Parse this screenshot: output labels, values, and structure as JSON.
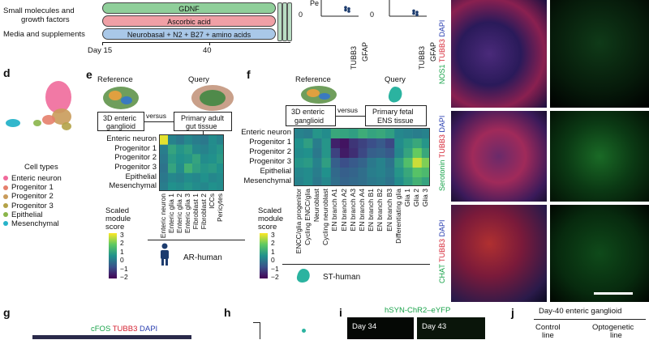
{
  "panel_a": {
    "row_labels": [
      "Small molecules and",
      "growth factors",
      "Media and supplements"
    ],
    "bars": [
      {
        "label": "GDNF",
        "color": "#8fcf9a"
      },
      {
        "label": "Ascorbic acid",
        "color": "#f0a0a6"
      },
      {
        "label": "Neurobasal + N2 + B27 + amino acids",
        "color": "#a9c8e8"
      }
    ],
    "axis": {
      "start": "Day 15",
      "end": "40"
    }
  },
  "panel_b": {
    "ylabel": "Pe",
    "tick_zero": "0",
    "plots": [
      {
        "categories": [
          "TUBB3",
          "GFAP"
        ],
        "values": [
          null,
          14
        ]
      },
      {
        "categories": [
          "TUBB3",
          "GFAP"
        ],
        "values": [
          null,
          7
        ]
      }
    ]
  },
  "panel_c": {
    "rows": [
      {
        "green": "NOS1",
        "red": "TUBB3",
        "blue": "DAPI"
      },
      {
        "green": "Serotonin",
        "red": "TUBB3",
        "blue": "DAPI"
      },
      {
        "green": "CHAT",
        "red": "TUBB3",
        "blue": "DAPI"
      }
    ]
  },
  "panel_d": {
    "letter": "d",
    "legend_title": "Cell types",
    "legend": [
      {
        "label": "Enteric neuron",
        "color": "#f06a9b"
      },
      {
        "label": "Progenitor 1",
        "color": "#e57f6c"
      },
      {
        "label": "Progenitor 2",
        "color": "#c99b5a"
      },
      {
        "label": "Progenitor 3",
        "color": "#b3a247"
      },
      {
        "label": "Epithelial",
        "color": "#8ab54a"
      },
      {
        "label": "Mesenchymal",
        "color": "#27b3c9"
      }
    ]
  },
  "panel_e": {
    "letter": "e",
    "reference_label": "Reference",
    "query_label": "Query",
    "box_left": [
      "3D enteric",
      "ganglioid"
    ],
    "versus": "versus",
    "box_right": [
      "Primary adult",
      "gut tissue"
    ],
    "footer": "AR-human",
    "scale_title": [
      "Scaled",
      "module",
      "score"
    ]
  },
  "panel_f": {
    "letter": "f",
    "reference_label": "Reference",
    "query_label": "Query",
    "box_left": [
      "3D enteric",
      "ganglioid"
    ],
    "versus": "versus",
    "box_right": [
      "Primary fetal",
      "ENS tissue"
    ],
    "footer": "ST-human",
    "scale_title": [
      "Scaled",
      "module",
      "score"
    ]
  },
  "scale_ticks": [
    "3",
    "2",
    "1",
    "0",
    "−1",
    "−2"
  ],
  "chart_data": [
    {
      "type": "heatmap",
      "rows": [
        "Enteric neuron",
        "Progenitor 1",
        "Progenitor 2",
        "Progenitor 3",
        "Epithelial",
        "Mesenchymal"
      ],
      "columns": [
        "Enteric neuron",
        "Enteric glia 1",
        "Enteric glia 2",
        "Enteric glia 3",
        "Fibroblast 1",
        "Fibroblast 2",
        "ICCs",
        "Pericytes"
      ],
      "values": [
        [
          2.8,
          0.2,
          0.0,
          0.3,
          0.1,
          0.0,
          0.4,
          0.2
        ],
        [
          0.1,
          0.9,
          0.6,
          0.8,
          0.3,
          0.2,
          0.4,
          0.6
        ],
        [
          0.0,
          0.7,
          0.5,
          0.6,
          0.9,
          0.4,
          0.5,
          0.7
        ],
        [
          -0.1,
          0.9,
          0.4,
          1.2,
          0.8,
          0.6,
          0.7,
          0.5
        ],
        [
          0.0,
          0.3,
          0.2,
          0.4,
          0.3,
          0.5,
          0.3,
          0.4
        ],
        [
          0.1,
          0.5,
          0.4,
          0.6,
          0.4,
          0.3,
          0.5,
          0.4
        ]
      ],
      "xlabel": "AR-human",
      "zlim": [
        -2,
        3
      ]
    },
    {
      "type": "heatmap",
      "rows": [
        "Enteric neuron",
        "Progenitor 1",
        "Progenitor 2",
        "Progenitor 3",
        "Epithelial",
        "Mesenchymal"
      ],
      "columns": [
        "ENCC/glia progenitor",
        "Cycling ENCC/glia",
        "Neuroblast",
        "Cycling neuroblast",
        "EN branch A1",
        "EN branch A2",
        "EN branch A3",
        "EN branch A4",
        "EN branch B1",
        "EN branch B2",
        "EN branch B3",
        "Differentiating glia",
        "Glia 1",
        "Glia 2",
        "Glia 3"
      ],
      "values": [
        [
          0.2,
          0.1,
          0.6,
          0.4,
          1.0,
          0.9,
          0.8,
          1.1,
          0.9,
          1.0,
          0.8,
          0.3,
          0.2,
          0.1,
          0.2
        ],
        [
          0.5,
          0.8,
          0.1,
          0.6,
          -1.5,
          -1.7,
          -1.2,
          -1.0,
          -0.8,
          -0.6,
          -0.9,
          0.4,
          0.7,
          1.0,
          0.6
        ],
        [
          0.4,
          0.5,
          0.0,
          0.6,
          -1.0,
          -1.6,
          -1.3,
          -0.9,
          -0.5,
          -0.4,
          -0.6,
          0.3,
          0.9,
          1.8,
          1.0
        ],
        [
          0.6,
          0.7,
          0.2,
          0.8,
          -0.5,
          -0.8,
          -0.6,
          -0.4,
          0.0,
          0.2,
          -0.1,
          0.8,
          1.5,
          2.6,
          2.0
        ],
        [
          0.3,
          0.4,
          0.1,
          0.5,
          -0.3,
          -0.5,
          -0.4,
          -0.2,
          0.1,
          0.2,
          0.0,
          0.6,
          1.0,
          1.6,
          1.4
        ],
        [
          0.2,
          0.4,
          0.0,
          0.3,
          -0.2,
          -0.4,
          -0.3,
          -0.2,
          0.0,
          0.1,
          -0.1,
          0.4,
          0.8,
          1.2,
          0.9
        ]
      ],
      "xlabel": "ST-human",
      "zlim": [
        -2,
        3
      ]
    }
  ],
  "panel_g": {
    "letter": "g",
    "title_green": "cFOS",
    "title_red": "TUBB3",
    "title_blue": "DAPI"
  },
  "panel_h": {
    "letter": "h"
  },
  "panel_i": {
    "letter": "i",
    "title": "hSYN-ChR2–eYFP",
    "frames": [
      "Day 34",
      "Day 43"
    ]
  },
  "panel_j": {
    "letter": "j",
    "title": "Day-40 enteric ganglioid",
    "col1": [
      "Control",
      "line"
    ],
    "col2": [
      "Optogenetic",
      "line"
    ]
  }
}
